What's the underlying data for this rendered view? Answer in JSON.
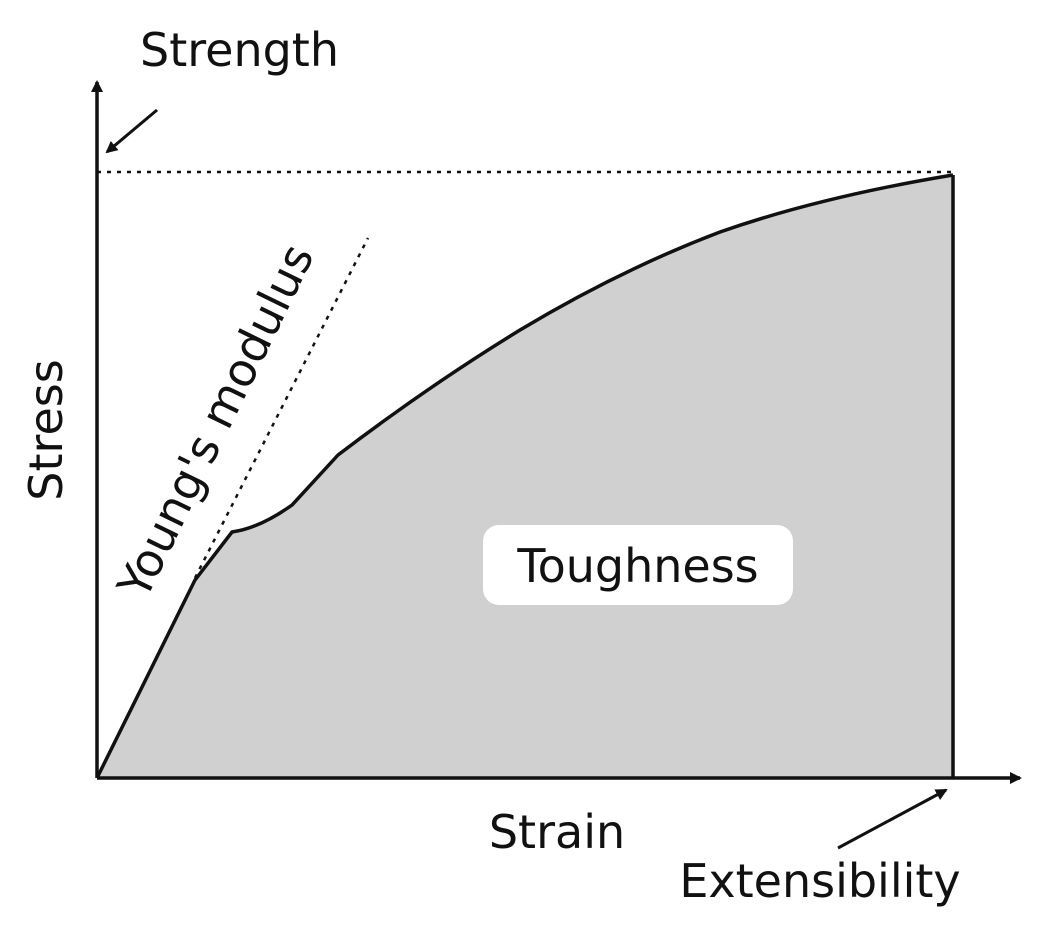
{
  "diagram": {
    "labels": {
      "strength": "Strength",
      "stress": "Stress",
      "youngs_modulus": "Young's modulus",
      "toughness": "Toughness",
      "strain": "Strain",
      "extensibility": "Extensibility"
    },
    "colors": {
      "background": "#ffffff",
      "line": "#111111",
      "toughness_fill": "#d0d0d0",
      "label_box": "#ffffff"
    }
  }
}
